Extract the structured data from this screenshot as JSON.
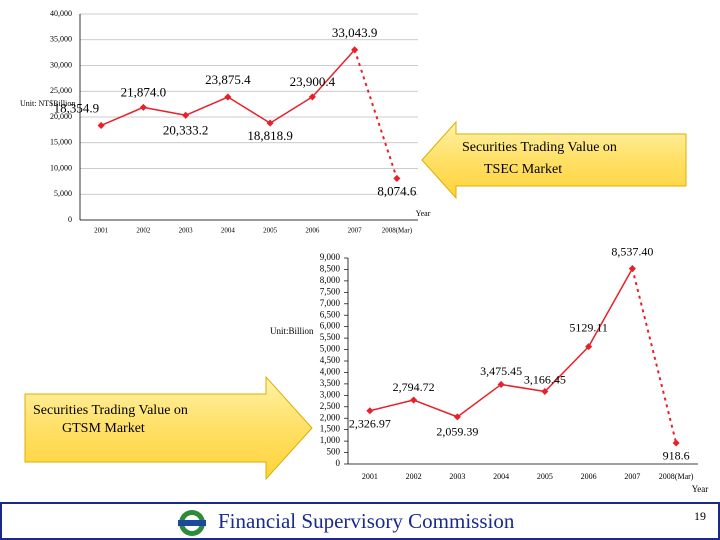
{
  "chart_data": [
    {
      "type": "line",
      "axis_label": "Unit: NT$Billion",
      "x_label": "Year",
      "categories": [
        "2001",
        "2002",
        "2003",
        "2004",
        "2005",
        "2006",
        "2007",
        "2008(Mar)"
      ],
      "values": [
        18354.9,
        21874.0,
        20333.2,
        23875.4,
        18818.9,
        23900.4,
        33043.9,
        8074.6
      ],
      "value_labels": [
        "18,354.9",
        "21,874.0",
        "20,333.2",
        "23,875.4",
        "18,818.9",
        "23,900.4",
        "33,043.9",
        "8,074.6"
      ],
      "color": "#e8202a",
      "ylim": [
        0,
        40000
      ],
      "grid": true,
      "yticks": [
        0,
        {
          "value": 5000,
          "label": "5,000"
        },
        {
          "value": 10000,
          "label": "10,000"
        },
        {
          "value": 15000,
          "label": "15,000"
        },
        {
          "value": 20000,
          "label": "20,000"
        },
        {
          "value": 25000,
          "label": "25,000"
        },
        {
          "value": 30000,
          "label": "30,000"
        },
        {
          "value": 35000,
          "label": "35,000"
        },
        {
          "value": 40000,
          "label": "40,000"
        }
      ]
    },
    {
      "type": "line",
      "axis_label": "Unit:Billion",
      "x_label": "Year",
      "categories": [
        "2001",
        "2002",
        "2003",
        "2004",
        "2005",
        "2006",
        "2007",
        "2008(Mar)"
      ],
      "values": [
        2326.97,
        2794.72,
        2059.39,
        3475.45,
        3166.45,
        5129.11,
        8537.4,
        918.6
      ],
      "value_labels": [
        "2,326.97",
        "2,794.72",
        "2,059.39",
        "3,475.45",
        "3,166.45",
        "5129.11",
        "8,537.40",
        "918.6"
      ],
      "color": "#e8202a",
      "ylim": [
        0,
        9000
      ],
      "grid": false,
      "yticks": [
        0,
        500,
        {
          "value": 1000,
          "label": "1,000"
        },
        {
          "value": 1500,
          "label": "1,500"
        },
        {
          "value": 2000,
          "label": "2,000"
        },
        {
          "value": 2500,
          "label": "2,500"
        },
        {
          "value": 3000,
          "label": "3,000"
        },
        {
          "value": 3500,
          "label": "3,500"
        },
        {
          "value": 4000,
          "label": "4,000"
        },
        {
          "value": 4500,
          "label": "4,500"
        },
        {
          "value": 5000,
          "label": "5,000"
        },
        {
          "value": 5500,
          "label": "5,500"
        },
        {
          "value": 6000,
          "label": "6,000"
        },
        {
          "value": 6500,
          "label": "6,500"
        },
        {
          "value": 7000,
          "label": "7,000"
        },
        {
          "value": 7500,
          "label": "7,500"
        },
        {
          "value": 8000,
          "label": "8,000"
        },
        {
          "value": 8500,
          "label": "8,500"
        },
        {
          "value": 9000,
          "label": "9,000"
        }
      ]
    }
  ],
  "callouts": [
    [
      "Securities Trading Value on",
      "TSEC Market"
    ],
    [
      "Securities Trading Value on",
      "GTSM Market"
    ]
  ],
  "footer": {
    "title": "Financial Supervisory Commission",
    "page": "19"
  }
}
